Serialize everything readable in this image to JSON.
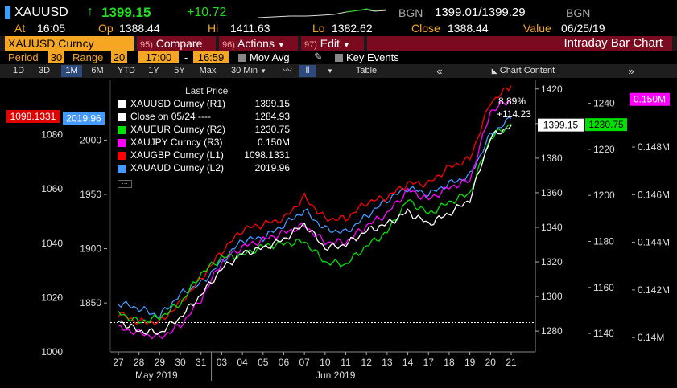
{
  "header": {
    "ticker": "XAUUSD",
    "change_arrow": "↑",
    "last": "1399.15",
    "change": "+10.72",
    "source1": "BGN",
    "bid_ask": "1399.01/1399.29",
    "source2": "BGN",
    "at_label": "At",
    "time": "16:05",
    "op_label": "Op",
    "open": "1388.44",
    "hi_label": "Hi",
    "high": "1411.63",
    "lo_label": "Lo",
    "low": "1382.62",
    "close_label": "Close",
    "close": "1388.44",
    "value_label": "Value",
    "value_date": "06/25/19"
  },
  "menubar": {
    "security": "XAUUSD Curncy",
    "compare_num": "95)",
    "compare": "Compare",
    "actions_num": "96)",
    "actions": "Actions",
    "edit_num": "97)",
    "edit": "Edit",
    "chart_title": "Intraday Bar Chart"
  },
  "settings": {
    "period_label": "Period",
    "period": "30",
    "range_label": "Range",
    "range": "20",
    "time_from": "17:00",
    "dash": "-",
    "time_to": "16:59",
    "mov_avg": "Mov Avg",
    "key_events": "Key Events"
  },
  "toolbar": {
    "ranges": [
      "1D",
      "3D",
      "1M",
      "6M",
      "YTD",
      "1Y",
      "5Y",
      "Max"
    ],
    "active_range": "1M",
    "interval": "30 Min",
    "table": "Table",
    "chart_content": "Chart Content"
  },
  "legend": {
    "title": "Last Price",
    "items": [
      {
        "label": "XAUUSD Curncy  (R1)",
        "value": "1399.15",
        "color": "#ffffff"
      },
      {
        "label": "Close on 05/24 ----",
        "value": "1284.93",
        "color": "#ffffff"
      },
      {
        "label": "XAUEUR Curncy  (R2)",
        "value": "1230.75",
        "color": "#00e000"
      },
      {
        "label": "XAUJPY Curncy  (R3)",
        "value": "0.150M",
        "color": "#ff00ff"
      },
      {
        "label": "XAUGBP Curncy  (L1)",
        "value": "1098.1331",
        "color": "#ff0000"
      },
      {
        "label": "XAUAUD Curncy  (L2)",
        "value": "2019.96",
        "color": "#4499ff"
      }
    ]
  },
  "annotations": {
    "pct_change": "8.89%",
    "abs_change": "+114.23"
  },
  "value_tags": {
    "gbp": "1098.1331",
    "aud": "2019.96",
    "usd": "1399.15",
    "eur": "1230.75",
    "jpy": "0.150M"
  },
  "chart_data": {
    "type": "line",
    "x": [
      "May 27",
      "May 28",
      "May 29",
      "May 30",
      "May 31",
      "Jun 3",
      "Jun 4",
      "Jun 5",
      "Jun 6",
      "Jun 7",
      "Jun 10",
      "Jun 11",
      "Jun 12",
      "Jun 13",
      "Jun 14",
      "Jun 17",
      "Jun 18",
      "Jun 19",
      "Jun 20",
      "Jun 21"
    ],
    "x_tick_labels": [
      "27",
      "28",
      "29",
      "30",
      "31",
      "03",
      "04",
      "05",
      "06",
      "07",
      "10",
      "11",
      "12",
      "13",
      "14",
      "17",
      "18",
      "19",
      "20",
      "21"
    ],
    "x_group_labels": [
      "May 2019",
      "Jun 2019"
    ],
    "axes": {
      "L1": {
        "ticks": [
          "1000",
          "1020",
          "1040",
          "1060",
          "1080"
        ],
        "range": [
          1000,
          1100
        ]
      },
      "L2": {
        "ticks": [
          "1850",
          "1900",
          "1950",
          "2000"
        ],
        "range": [
          1805,
          2055
        ]
      },
      "R1": {
        "ticks": [
          "1280",
          "1300",
          "1320",
          "1340",
          "1360",
          "1380",
          "1400",
          "1420"
        ],
        "range": [
          1268,
          1425
        ]
      },
      "R2": {
        "ticks": [
          "1140",
          "1160",
          "1180",
          "1200",
          "1220",
          "1240"
        ],
        "range": [
          1132,
          1250
        ]
      },
      "R3": {
        "ticks": [
          "0.14M",
          "0.142M",
          "0.144M",
          "0.146M",
          "0.148M"
        ],
        "range": [
          0.1394,
          0.1508
        ]
      }
    },
    "reference_line": {
      "label": "Close on 05/24",
      "axis": "R1",
      "value": 1284.93
    },
    "series": [
      {
        "name": "XAUUSD Curncy",
        "axis": "R1",
        "color": "#ffffff",
        "values": [
          1286,
          1280,
          1279,
          1288,
          1301,
          1316,
          1325,
          1328,
          1333,
          1342,
          1328,
          1330,
          1338,
          1342,
          1349,
          1342,
          1348,
          1356,
          1392,
          1399
        ]
      },
      {
        "name": "XAUEUR Curncy",
        "axis": "R2",
        "color": "#00e000",
        "values": [
          1149,
          1145,
          1147,
          1153,
          1166,
          1173,
          1174,
          1178,
          1179,
          1180,
          1171,
          1170,
          1178,
          1184,
          1198,
          1192,
          1197,
          1201,
          1225,
          1231
        ]
      },
      {
        "name": "XAUJPY Curncy",
        "axis": "R3",
        "color": "#ff00ff",
        "values": [
          0.1404,
          0.1402,
          0.14,
          0.1405,
          0.1416,
          0.1432,
          0.1438,
          0.1441,
          0.1444,
          0.1447,
          0.144,
          0.144,
          0.1447,
          0.1452,
          0.1462,
          0.1458,
          0.1463,
          0.1466,
          0.1495,
          0.15
        ]
      },
      {
        "name": "XAUGBP Curncy",
        "axis": "L1",
        "color": "#ff0000",
        "values": [
          1014,
          1011,
          1011,
          1018,
          1027,
          1037,
          1045,
          1047,
          1049,
          1057,
          1049,
          1049,
          1055,
          1057,
          1062,
          1062,
          1068,
          1071,
          1092,
          1098
        ]
      },
      {
        "name": "XAUAUD Curncy",
        "axis": "L2",
        "color": "#4499ff",
        "values": [
          1850,
          1845,
          1838,
          1858,
          1868,
          1888,
          1908,
          1910,
          1922,
          1935,
          1918,
          1915,
          1930,
          1945,
          1956,
          1950,
          1960,
          1967,
          2005,
          2020
        ]
      }
    ]
  }
}
